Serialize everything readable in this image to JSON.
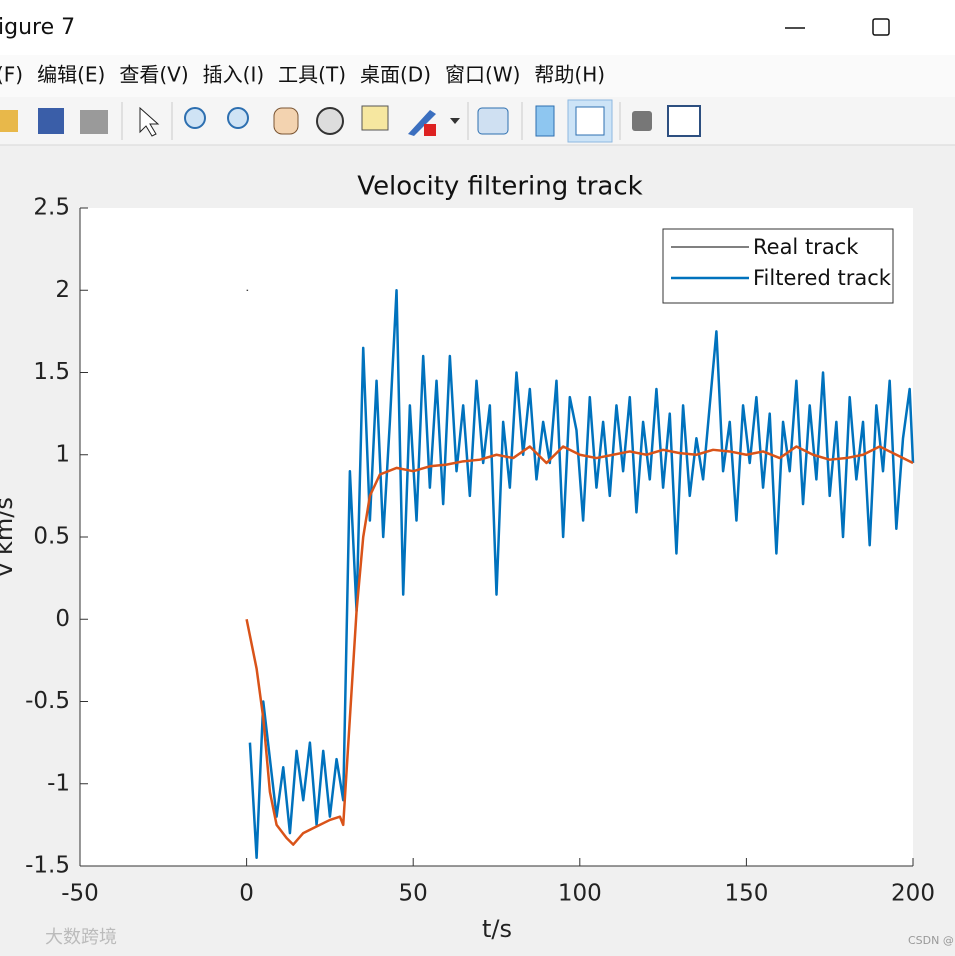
{
  "window": {
    "title": "igure 7",
    "menu": [
      "(F)",
      "编辑(E)",
      "查看(V)",
      "插入(I)",
      "工具(T)",
      "桌面(D)",
      "窗口(W)",
      "帮助(H)"
    ],
    "watermarks": [
      "大数跨境",
      "CSDN @"
    ]
  },
  "chart_data": {
    "type": "line",
    "title": "Velocity filtering track",
    "x_label": "t/s",
    "y_label": "v km/s",
    "xlim": [
      -50,
      200
    ],
    "ylim": [
      -1.5,
      2.5
    ],
    "xticks": [
      -50,
      0,
      50,
      100,
      150,
      200
    ],
    "yticks": [
      -1.5,
      -1,
      -0.5,
      0,
      0.5,
      1,
      1.5,
      2,
      2.5
    ],
    "grid": true,
    "legend": "upper right",
    "series": [
      {
        "name": "Real track",
        "color": "#000000",
        "width": 1,
        "x": [
          0
        ],
        "values": [
          2
        ]
      },
      {
        "name": "Filtered track",
        "color": "#0072bd",
        "width": 2.5,
        "x": [
          1,
          3,
          5,
          7,
          9,
          11,
          13,
          15,
          17,
          19,
          21,
          23,
          25,
          27,
          29,
          31,
          33,
          35,
          37,
          39,
          41,
          43,
          45,
          47,
          49,
          51,
          53,
          55,
          57,
          59,
          61,
          63,
          65,
          67,
          69,
          71,
          73,
          75,
          77,
          79,
          81,
          83,
          85,
          87,
          89,
          91,
          93,
          95,
          97,
          99,
          101,
          103,
          105,
          107,
          109,
          111,
          113,
          115,
          117,
          119,
          121,
          123,
          125,
          127,
          129,
          131,
          133,
          135,
          137,
          139,
          141,
          143,
          145,
          147,
          149,
          151,
          153,
          155,
          157,
          159,
          161,
          163,
          165,
          167,
          169,
          171,
          173,
          175,
          177,
          179,
          181,
          183,
          185,
          187,
          189,
          191,
          193,
          195,
          197,
          199,
          200
        ],
        "values": [
          -0.75,
          -1.45,
          -0.5,
          -0.85,
          -1.2,
          -0.9,
          -1.3,
          -0.8,
          -1.1,
          -0.75,
          -1.25,
          -0.8,
          -1.2,
          -0.85,
          -1.1,
          0.9,
          0.05,
          1.65,
          0.6,
          1.45,
          0.5,
          1.2,
          2.0,
          0.15,
          1.3,
          0.6,
          1.6,
          0.8,
          1.45,
          0.7,
          1.6,
          0.9,
          1.3,
          0.75,
          1.45,
          0.95,
          1.3,
          0.15,
          1.2,
          0.8,
          1.5,
          1.0,
          1.4,
          0.85,
          1.2,
          0.95,
          1.45,
          0.5,
          1.35,
          1.15,
          0.6,
          1.35,
          0.8,
          1.2,
          0.75,
          1.3,
          0.9,
          1.35,
          0.65,
          1.2,
          0.85,
          1.4,
          0.8,
          1.25,
          0.4,
          1.3,
          0.75,
          1.1,
          0.85,
          1.3,
          1.75,
          0.9,
          1.2,
          0.6,
          1.3,
          0.95,
          1.35,
          0.8,
          1.25,
          0.4,
          1.2,
          0.9,
          1.45,
          0.7,
          1.3,
          0.85,
          1.5,
          0.75,
          1.2,
          0.5,
          1.35,
          0.85,
          1.2,
          0.45,
          1.3,
          0.9,
          1.45,
          0.55,
          1.1,
          1.4,
          0.95
        ]
      },
      {
        "color": "#d95319",
        "width": 2.5,
        "x": [
          0,
          3,
          5,
          7,
          9,
          12,
          14,
          17,
          20,
          25,
          28,
          29,
          31,
          33,
          35,
          37,
          40,
          45,
          50,
          55,
          60,
          65,
          70,
          75,
          80,
          85,
          90,
          95,
          100,
          105,
          110,
          115,
          120,
          125,
          130,
          135,
          140,
          145,
          150,
          155,
          160,
          165,
          170,
          175,
          180,
          185,
          190,
          195,
          200
        ],
        "values": [
          0,
          -0.3,
          -0.6,
          -1.05,
          -1.25,
          -1.33,
          -1.37,
          -1.3,
          -1.27,
          -1.22,
          -1.2,
          -1.25,
          -0.6,
          0.05,
          0.5,
          0.75,
          0.88,
          0.92,
          0.9,
          0.93,
          0.94,
          0.96,
          0.97,
          1.0,
          0.98,
          1.05,
          0.95,
          1.05,
          1.0,
          0.98,
          1.0,
          1.02,
          1.0,
          1.03,
          1.01,
          1.0,
          1.03,
          1.02,
          1.0,
          1.02,
          0.98,
          1.05,
          1.0,
          0.97,
          0.98,
          1.0,
          1.05,
          1.0,
          0.95
        ]
      }
    ]
  }
}
